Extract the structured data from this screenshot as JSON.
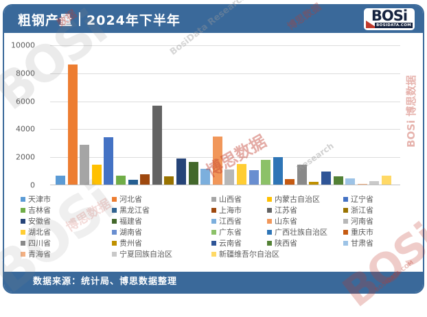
{
  "header": {
    "title_left": "粗钢产量",
    "title_right": "2024年下半年",
    "logo": {
      "brand": "BOSi",
      "domain": "BOSIDATA.COM"
    }
  },
  "footer": {
    "source_label": "数据来源：统计局、博思数据整理"
  },
  "watermarks": [
    "BOSi",
    "BosiData Research",
    "博思数据",
    "数据",
    "博思数据",
    "Research",
    "BOSi 博思数据",
    "BOSi",
    "BOSi",
    "博思数据",
    "BOSIDATA.COM"
  ],
  "chart_data": {
    "type": "bar",
    "title": "粗钢产量 | 2024年下半年",
    "xlabel": "",
    "ylabel": "",
    "ylim": [
      0,
      10000
    ],
    "yticks": [
      0,
      2000,
      4000,
      6000,
      8000,
      10000
    ],
    "grid": true,
    "legend_position": "bottom",
    "categories": [
      "天津市",
      "河北省",
      "山西省",
      "内蒙古自治区",
      "辽宁省",
      "吉林省",
      "黑龙江省",
      "上海市",
      "江苏省",
      "浙江省",
      "安徽省",
      "福建省",
      "江西省",
      "山东省",
      "河南省",
      "湖北省",
      "湖南省",
      "广东省",
      "广西壮族自治区",
      "重庆市",
      "四川省",
      "贵州省",
      "云南省",
      "陕西省",
      "甘肃省",
      "青海省",
      "宁夏回族自治区",
      "新疆维吾尔自治区"
    ],
    "values": [
      650,
      8600,
      2850,
      1450,
      3400,
      650,
      350,
      750,
      5650,
      600,
      1850,
      1650,
      1150,
      3450,
      1100,
      1500,
      1050,
      1750,
      1950,
      400,
      1450,
      200,
      950,
      600,
      450,
      50,
      250,
      650
    ],
    "colors": [
      "#5B9BD5",
      "#ED7D31",
      "#A5A5A5",
      "#FFC000",
      "#4472C4",
      "#70AD47",
      "#255E91",
      "#9E480E",
      "#636363",
      "#997300",
      "#264478",
      "#43682B",
      "#7CAFDD",
      "#F1975A",
      "#B7B7B7",
      "#FFCD33",
      "#698ED0",
      "#8CC168",
      "#2E75B6",
      "#C55A11",
      "#898989",
      "#BF9000",
      "#2F5597",
      "#538135",
      "#9DC3E6",
      "#F4B183",
      "#C9C9C9",
      "#FFD966"
    ]
  }
}
